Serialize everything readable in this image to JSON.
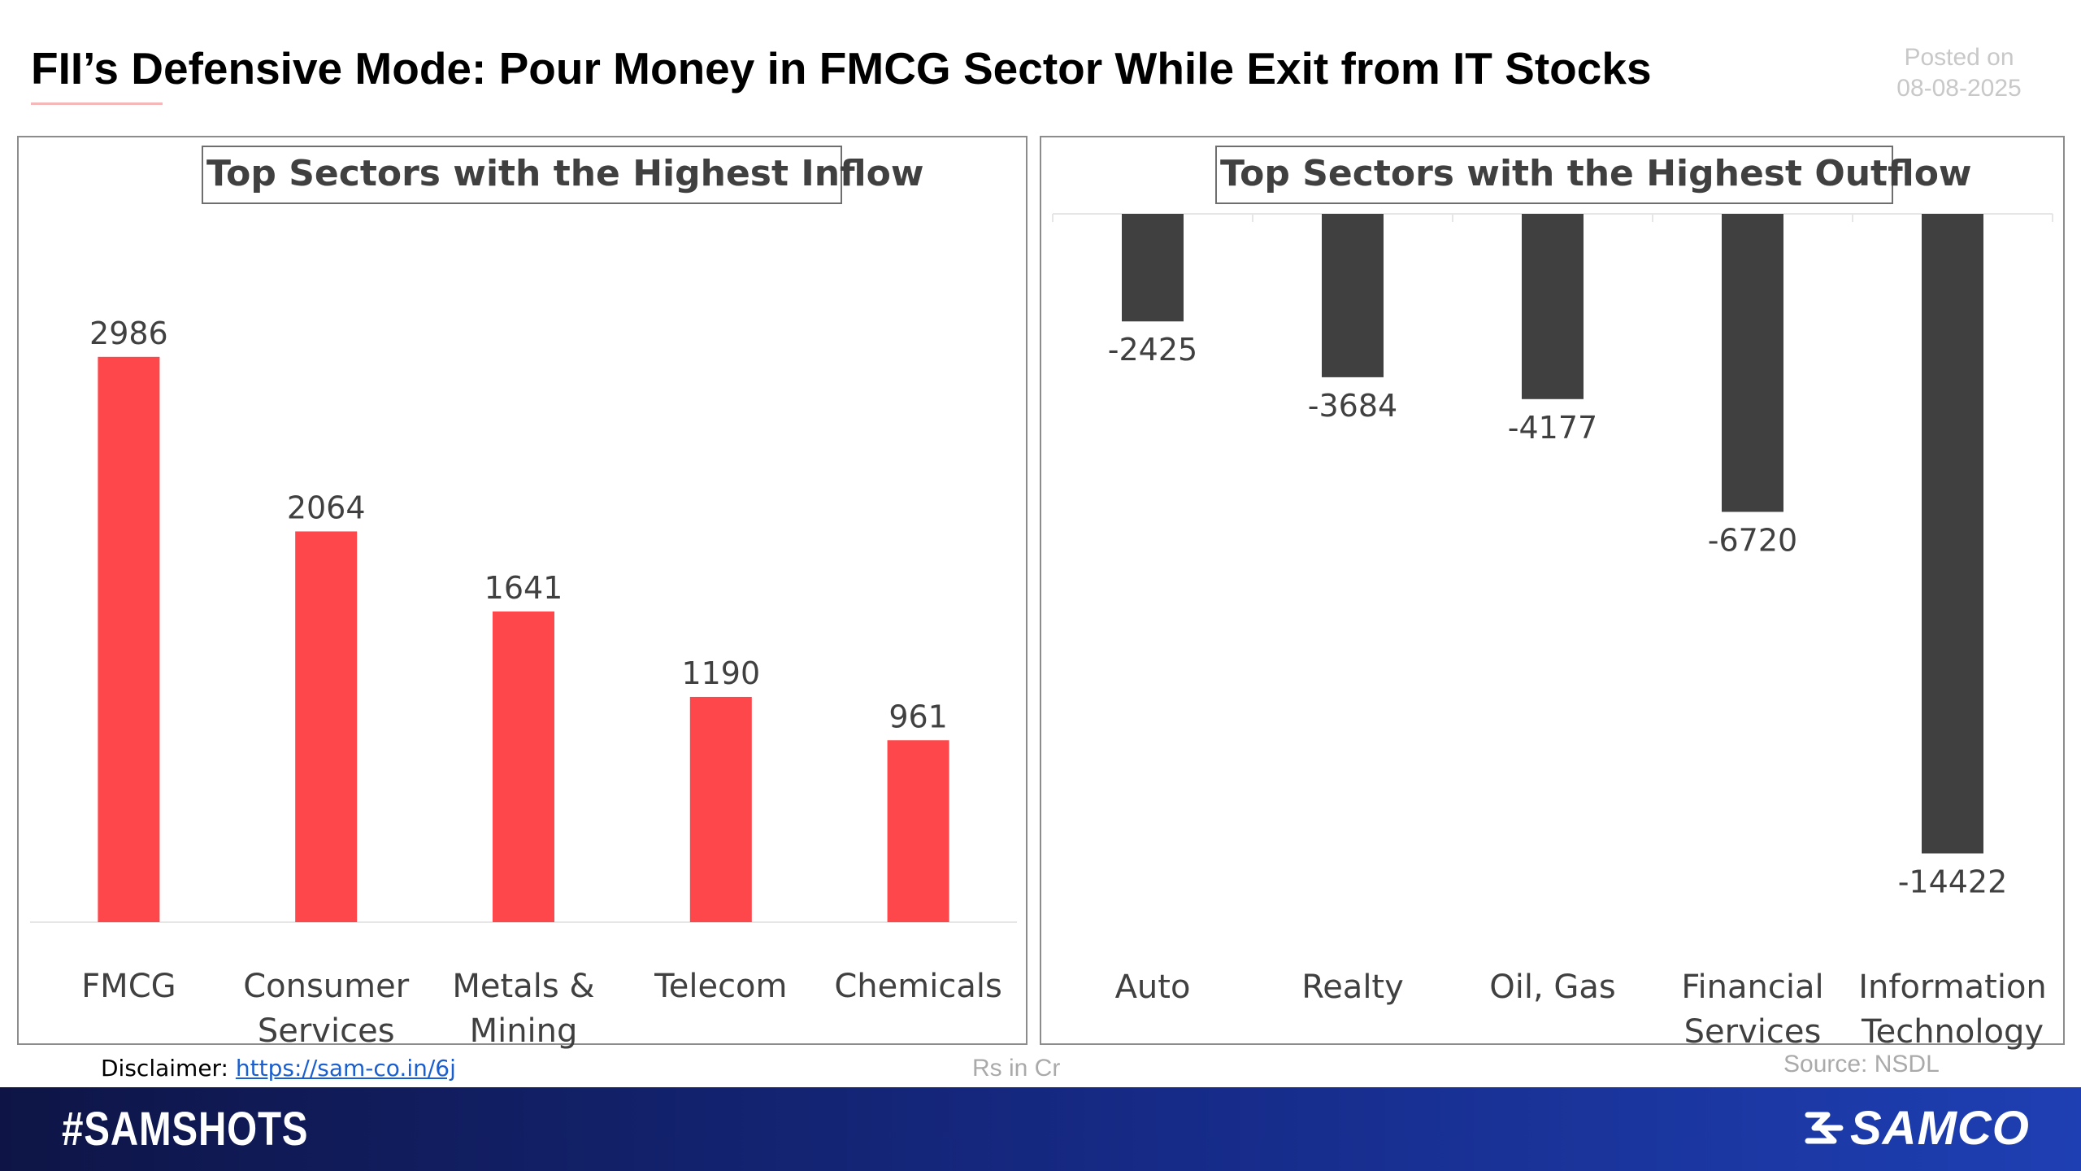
{
  "header": {
    "title": "FII’s Defensive Mode: Pour Money in FMCG Sector While Exit from IT Stocks",
    "posted_label": "Posted on",
    "posted_date": "08-08-2025"
  },
  "chart_data": [
    {
      "type": "bar",
      "title": "Top Sectors with the Highest Inflow",
      "categories": [
        [
          "FMCG"
        ],
        [
          "Consumer",
          "Services"
        ],
        [
          "Metals &",
          "Mining"
        ],
        [
          "Telecom"
        ],
        [
          "Chemicals"
        ]
      ],
      "values": [
        2986,
        2064,
        1641,
        1190,
        961
      ],
      "bar_color": "#fe474a",
      "ylim": [
        0,
        3200
      ],
      "grid": false
    },
    {
      "type": "bar",
      "title": "Top Sectors with the Highest Outflow",
      "categories": [
        [
          "Auto"
        ],
        [
          "Realty"
        ],
        [
          "Oil, Gas"
        ],
        [
          "Financial",
          "Services"
        ],
        [
          "Information",
          "Technology"
        ]
      ],
      "values": [
        -2425,
        -3684,
        -4177,
        -6720,
        -14422
      ],
      "bar_color": "#404040",
      "ylim": [
        -15000,
        0
      ],
      "grid": false
    }
  ],
  "footnotes": {
    "disclaimer_label": "Disclaimer:",
    "disclaimer_link": "https://sam-co.in/6j",
    "unit": "Rs in Cr",
    "source": "Source: NSDL"
  },
  "footer": {
    "hashtag": "#SAMSHOTS",
    "brand": "SAMCO",
    "brand_icon": "samco-logo-icon",
    "gradient_start": "#0e1546",
    "gradient_end": "#1e3fb3"
  }
}
